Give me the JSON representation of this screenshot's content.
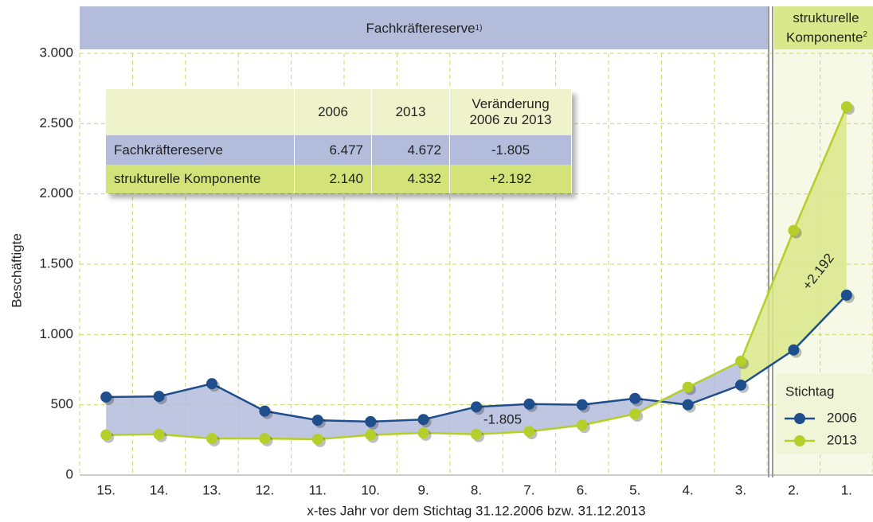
{
  "chart_data": {
    "type": "line",
    "header_left": "Fachkräftereserve",
    "header_left_note": "1)",
    "header_right": "strukturelle Komponente",
    "header_right_note": "2",
    "y_label": "Beschäftigte",
    "x_label": "x-tes Jahr vor dem Stichtag 31.12.2006 bzw. 31.12.2013",
    "categories": [
      "15.",
      "14.",
      "13.",
      "12.",
      "11.",
      "10.",
      "9.",
      "8.",
      "7.",
      "6.",
      "5.",
      "4.",
      "3.",
      "2.",
      "1."
    ],
    "series": [
      {
        "name": "2006",
        "color": "#1f4e8c",
        "values": [
          555,
          560,
          650,
          455,
          390,
          380,
          395,
          485,
          505,
          500,
          545,
          500,
          640,
          890,
          1280
        ]
      },
      {
        "name": "2013",
        "color": "#b5cf2a",
        "values": [
          285,
          290,
          260,
          260,
          255,
          285,
          300,
          290,
          310,
          355,
          435,
          625,
          810,
          1740,
          2620
        ]
      }
    ],
    "ylim": [
      0,
      3000
    ],
    "yticks": [
      0,
      500,
      {
        "value": 1000,
        "label": "1.000"
      },
      {
        "value": 1500,
        "label": "1.500"
      },
      {
        "value": 2000,
        "label": "2.000"
      },
      {
        "value": 2500,
        "label": "2.500"
      },
      {
        "value": 3000,
        "label": "3.000"
      }
    ],
    "grid": true,
    "legend_title": "Stichtag",
    "legend_position": "lower right",
    "annotations": [
      "-1.805",
      "+2.192"
    ],
    "table": {
      "columns": [
        "2006",
        "2013",
        "Veränderung 2006 zu 2013"
      ],
      "rows": [
        [
          "Fachkräftereserve",
          "6.477",
          "4.672",
          "-1.805"
        ],
        [
          "strukturelle Komponente",
          "2.140",
          "4.332",
          "+2.192"
        ]
      ]
    }
  }
}
